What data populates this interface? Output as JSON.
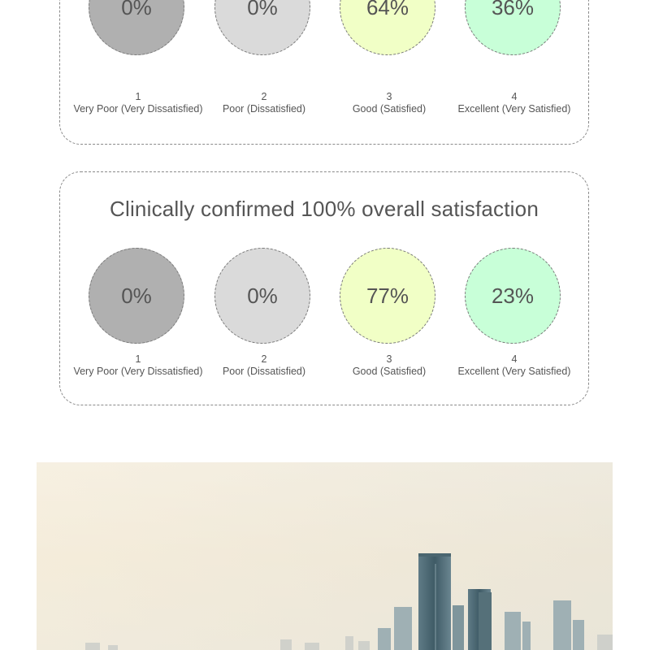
{
  "colors": {
    "very_poor": "#b0b0b0",
    "poor": "#dadada",
    "good": "#f1ffc6",
    "excellent": "#c8ffd8"
  },
  "cards": [
    {
      "title": "",
      "ratings": [
        {
          "value": "0%",
          "number": "1",
          "label": "Very Poor (Very Dissatisfied)"
        },
        {
          "value": "0%",
          "number": "2",
          "label": "Poor (Dissatisfied)"
        },
        {
          "value": "64%",
          "number": "3",
          "label": "Good (Satisfied)"
        },
        {
          "value": "36%",
          "number": "4",
          "label": "Excellent (Very Satisfied)"
        }
      ]
    },
    {
      "title": "Clinically confirmed 100% overall satisfaction",
      "ratings": [
        {
          "value": "0%",
          "number": "1",
          "label": "Very Poor (Very Dissatisfied)"
        },
        {
          "value": "0%",
          "number": "2",
          "label": "Poor (Dissatisfied)"
        },
        {
          "value": "77%",
          "number": "3",
          "label": "Good (Satisfied)"
        },
        {
          "value": "23%",
          "number": "4",
          "label": "Excellent (Very Satisfied)"
        }
      ]
    }
  ]
}
